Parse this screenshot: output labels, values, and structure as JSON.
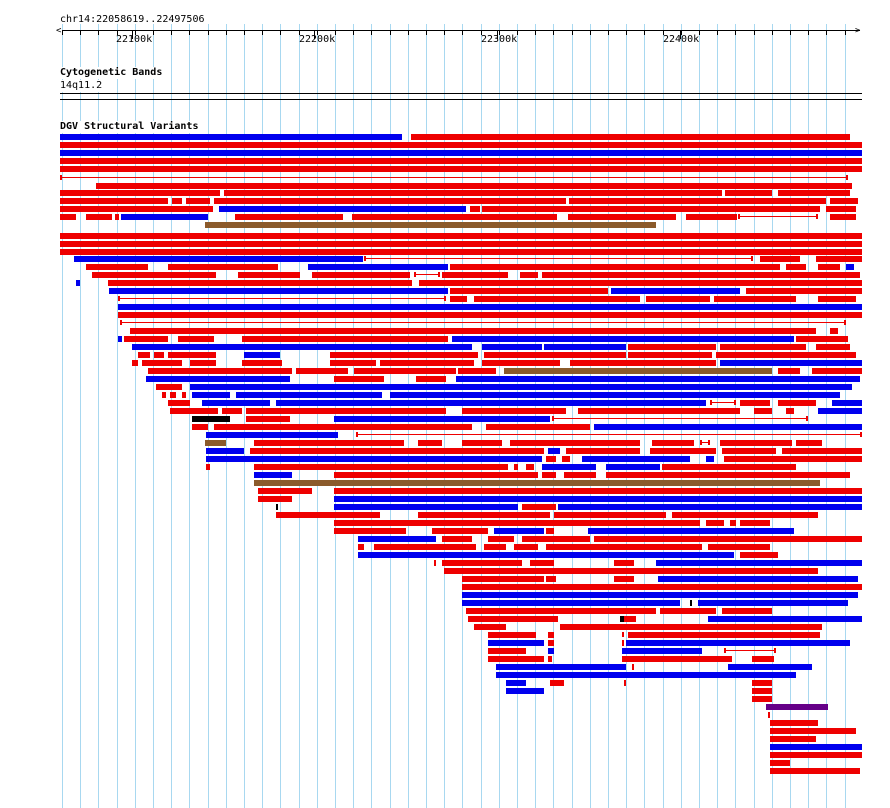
{
  "region_label": "chr14:22058619..22497506",
  "ruler": {
    "ticks": [
      "22100k",
      "22200k",
      "22300k",
      "22400k"
    ]
  },
  "tracks": {
    "cytogenetic": {
      "title": "Cytogenetic Bands",
      "band": "14q11.2"
    },
    "dgv": {
      "title": "DGV Structural Variants"
    }
  },
  "colors": {
    "gain": "#ee0000",
    "loss": "#0000ee",
    "inversion": "#8b5a2b",
    "complex": "#000000",
    "other": "#660088",
    "grid": "#a8d8f0"
  }
}
